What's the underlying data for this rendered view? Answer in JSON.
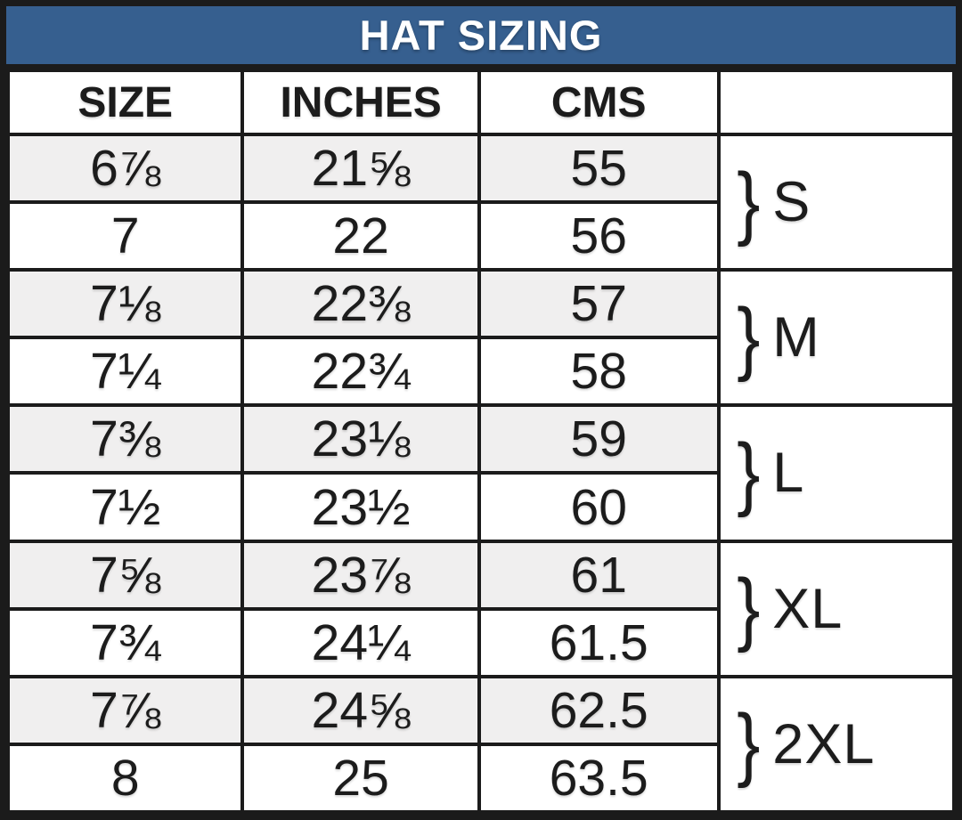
{
  "title": "HAT SIZING",
  "colors": {
    "header_bg": "#365f8f",
    "border": "#1b1b1b",
    "alt_row_bg": "#f0efef",
    "title_text": "#ffffff",
    "cell_text": "#1c1c1c"
  },
  "chart_data": {
    "type": "table",
    "title": "HAT SIZING",
    "columns": [
      "SIZE",
      "INCHES",
      "CMS"
    ],
    "group_column_header": "",
    "brace_glyph": "}",
    "rows": [
      {
        "size": "6⅞",
        "inches": "21⅝",
        "cms": "55"
      },
      {
        "size": "7",
        "inches": "22",
        "cms": "56"
      },
      {
        "size": "7⅛",
        "inches": "22⅜",
        "cms": "57"
      },
      {
        "size": "7¼",
        "inches": "22¾",
        "cms": "58"
      },
      {
        "size": "7⅜",
        "inches": "23⅛",
        "cms": "59"
      },
      {
        "size": "7½",
        "inches": "23½",
        "cms": "60"
      },
      {
        "size": "7⅝",
        "inches": "23⅞",
        "cms": "61"
      },
      {
        "size": "7¾",
        "inches": "24¼",
        "cms": "61.5"
      },
      {
        "size": "7⅞",
        "inches": "24⅝",
        "cms": "62.5"
      },
      {
        "size": "8",
        "inches": "25",
        "cms": "63.5"
      }
    ],
    "groups": [
      {
        "label": "S",
        "row_span": [
          1,
          2
        ]
      },
      {
        "label": "M",
        "row_span": [
          3,
          4
        ]
      },
      {
        "label": "L",
        "row_span": [
          5,
          6
        ]
      },
      {
        "label": "XL",
        "row_span": [
          7,
          8
        ]
      },
      {
        "label": "2XL",
        "row_span": [
          9,
          10
        ]
      }
    ]
  }
}
